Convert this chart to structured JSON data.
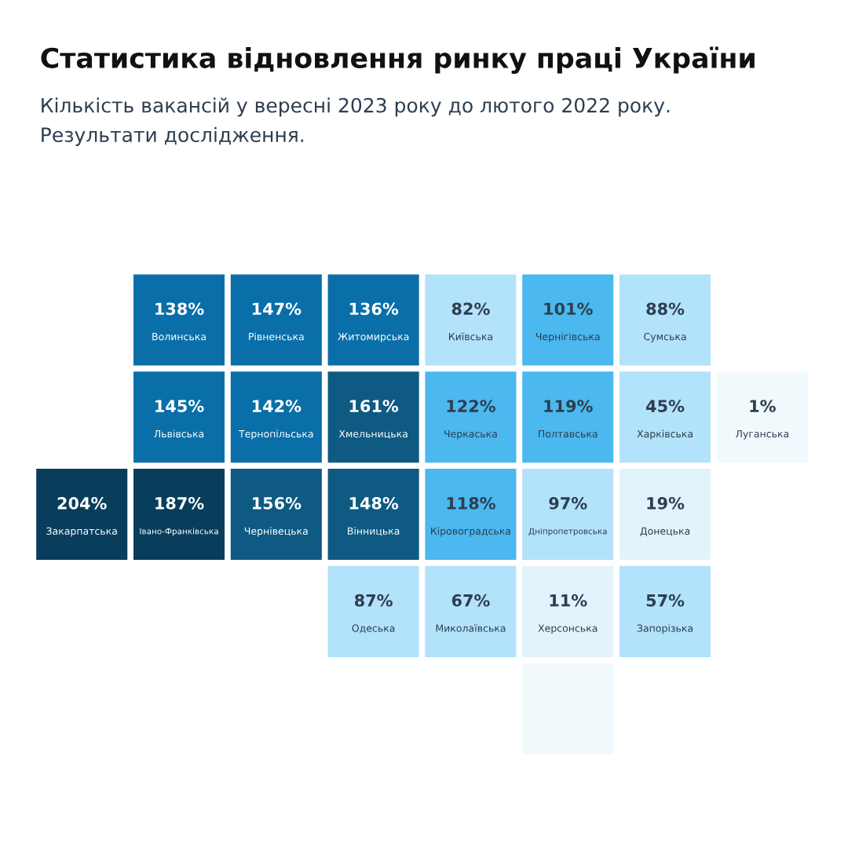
{
  "chart_data": {
    "type": "other",
    "title": "Статистика відновлення ринку праці України",
    "subtitle": "Кількість вакансій у вересні 2023 року до лютого 2022 року.\nРезультати дослідження.",
    "categories": [
      "Волинська",
      "Рівненська",
      "Житомирська",
      "Київська",
      "Чернігівська",
      "Сумська",
      "Львівська",
      "Тернопільська",
      "Хмельницька",
      "Черкаська",
      "Полтавська",
      "Харківська",
      "Луганська",
      "Закарпатська",
      "Івано-Франківська",
      "Чернівецька",
      "Вінницька",
      "Кіровоградська",
      "Дніпропетровська",
      "Донецька",
      "Одеська",
      "Миколаївська",
      "Херсонська",
      "Запорізька",
      null
    ],
    "values": [
      138,
      147,
      136,
      82,
      101,
      88,
      145,
      142,
      161,
      122,
      119,
      45,
      1,
      204,
      187,
      156,
      148,
      118,
      97,
      19,
      87,
      67,
      11,
      57,
      null
    ],
    "value_labels": [
      "138%",
      "147%",
      "136%",
      "82%",
      "101%",
      "88%",
      "145%",
      "142%",
      "161%",
      "122%",
      "119%",
      "45%",
      "1%",
      "204%",
      "187%",
      "156%",
      "148%",
      "118%",
      "97%",
      "19%",
      "87%",
      "67%",
      "11%",
      "57%",
      null
    ],
    "colors": [
      "#0a6fa8",
      "#0a6fa8",
      "#0a6fa8",
      "#b3e2fb",
      "#4bb8ef",
      "#b3e2fb",
      "#0a6fa8",
      "#0a6fa8",
      "#0e5a82",
      "#4bb8ef",
      "#4bb8ef",
      "#b3e2fb",
      "#f2f9fd",
      "#083d5c",
      "#083d5c",
      "#0e5a82",
      "#0e5a82",
      "#4bb8ef",
      "#b3e2fb",
      "#e3f3fc",
      "#b3e2fb",
      "#b3e2fb",
      "#e3f3fc",
      "#b3e2fb",
      "#f2f9fd"
    ]
  }
}
